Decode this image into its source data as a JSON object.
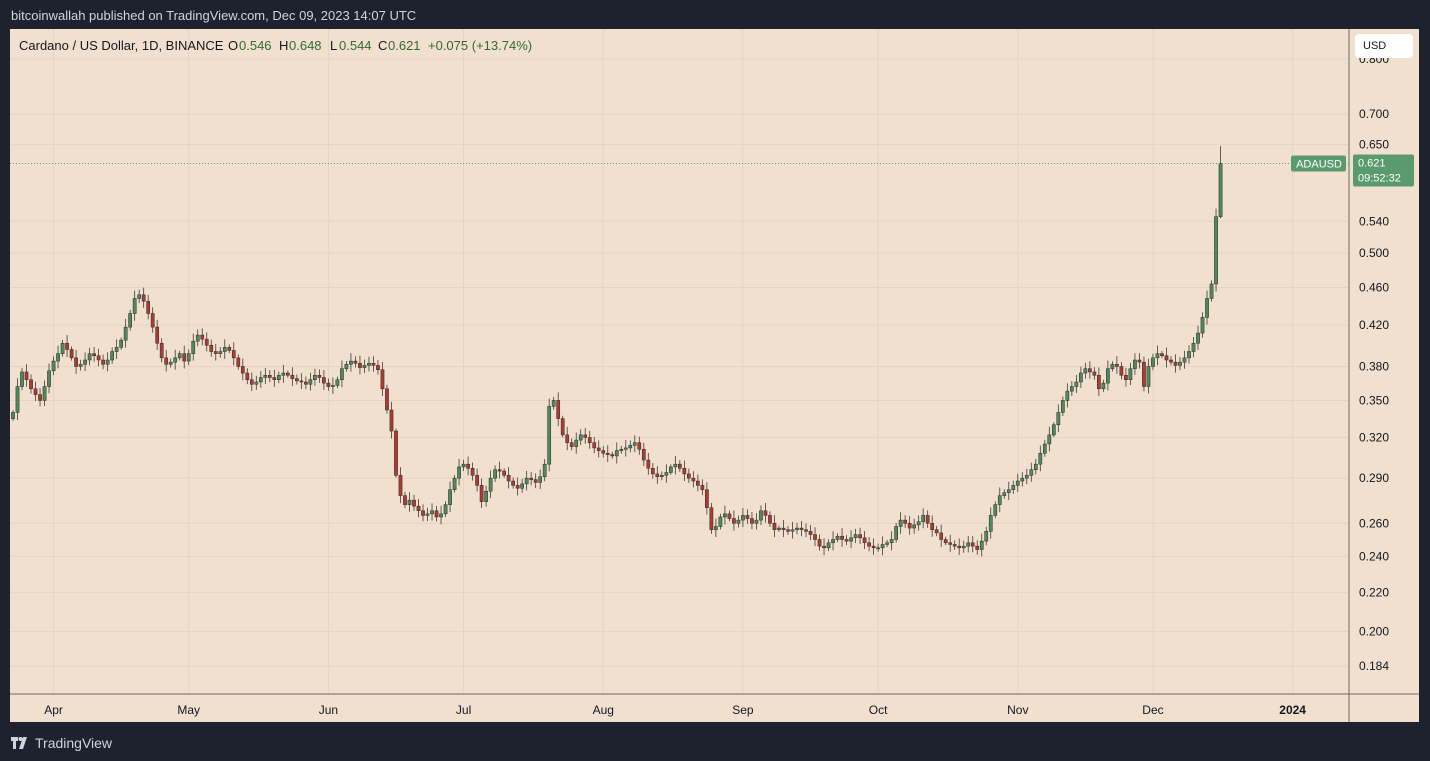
{
  "header": {
    "published": "bitcoinwallah published on TradingView.com, Dec 09, 2023 14:07 UTC"
  },
  "footer": {
    "brand": "TradingView"
  },
  "legend": {
    "symbol": "Cardano / US Dollar, 1D, BINANCE",
    "open_label": "O",
    "open": "0.546",
    "high_label": "H",
    "high": "0.648",
    "low_label": "L",
    "low": "0.544",
    "close_label": "C",
    "close": "0.621",
    "change": "+0.075 (+13.74%)"
  },
  "currency_button": "USD",
  "price_tag": {
    "symbol": "ADAUSD",
    "price": "0.621",
    "countdown": "09:52:32"
  },
  "colors": {
    "background": "#f2e0cf",
    "up": "#4f8b5a",
    "down": "#b03a2e",
    "tag": "#5a9b6e",
    "frame": "#1e222d"
  },
  "chart_data": {
    "type": "candlestick",
    "title": "Cardano / US Dollar, 1D, BINANCE",
    "y_scale": "log",
    "ylim": [
      0.172,
      0.86
    ],
    "x_ticks": [
      "Apr",
      "May",
      "Jun",
      "Jul",
      "Aug",
      "Sep",
      "Oct",
      "Nov",
      "Dec",
      "2024"
    ],
    "y_ticks": [
      "0.800",
      "0.700",
      "0.650",
      "0.540",
      "0.500",
      "0.460",
      "0.420",
      "0.380",
      "0.350",
      "0.320",
      "0.290",
      "0.260",
      "0.240",
      "0.220",
      "0.200",
      "0.184"
    ],
    "first_date": "2023-03-23",
    "last_date": "2023-12-09",
    "closes": [
      0.34,
      0.362,
      0.375,
      0.368,
      0.36,
      0.355,
      0.35,
      0.362,
      0.376,
      0.385,
      0.392,
      0.402,
      0.396,
      0.388,
      0.38,
      0.382,
      0.386,
      0.392,
      0.39,
      0.386,
      0.382,
      0.386,
      0.394,
      0.398,
      0.405,
      0.418,
      0.432,
      0.448,
      0.452,
      0.445,
      0.432,
      0.418,
      0.402,
      0.388,
      0.382,
      0.384,
      0.388,
      0.392,
      0.385,
      0.392,
      0.404,
      0.41,
      0.406,
      0.4,
      0.394,
      0.392,
      0.394,
      0.398,
      0.395,
      0.388,
      0.38,
      0.374,
      0.368,
      0.364,
      0.366,
      0.37,
      0.372,
      0.37,
      0.368,
      0.372,
      0.374,
      0.372,
      0.369,
      0.367,
      0.366,
      0.364,
      0.368,
      0.372,
      0.37,
      0.365,
      0.362,
      0.363,
      0.368,
      0.378,
      0.382,
      0.385,
      0.383,
      0.379,
      0.381,
      0.383,
      0.381,
      0.377,
      0.36,
      0.342,
      0.325,
      0.292,
      0.278,
      0.272,
      0.275,
      0.271,
      0.268,
      0.265,
      0.266,
      0.268,
      0.264,
      0.266,
      0.272,
      0.282,
      0.29,
      0.298,
      0.3,
      0.297,
      0.292,
      0.285,
      0.274,
      0.281,
      0.29,
      0.296,
      0.295,
      0.292,
      0.288,
      0.285,
      0.283,
      0.286,
      0.29,
      0.289,
      0.287,
      0.291,
      0.3,
      0.345,
      0.35,
      0.335,
      0.322,
      0.316,
      0.313,
      0.318,
      0.322,
      0.32,
      0.316,
      0.312,
      0.31,
      0.308,
      0.307,
      0.306,
      0.31,
      0.311,
      0.312,
      0.314,
      0.316,
      0.311,
      0.303,
      0.297,
      0.293,
      0.291,
      0.292,
      0.294,
      0.298,
      0.3,
      0.297,
      0.293,
      0.29,
      0.288,
      0.285,
      0.282,
      0.27,
      0.256,
      0.258,
      0.264,
      0.266,
      0.263,
      0.26,
      0.262,
      0.265,
      0.263,
      0.26,
      0.262,
      0.268,
      0.265,
      0.26,
      0.256,
      0.257,
      0.256,
      0.255,
      0.256,
      0.257,
      0.256,
      0.255,
      0.253,
      0.25,
      0.246,
      0.245,
      0.248,
      0.25,
      0.252,
      0.25,
      0.249,
      0.251,
      0.253,
      0.251,
      0.248,
      0.246,
      0.245,
      0.245,
      0.247,
      0.248,
      0.25,
      0.258,
      0.262,
      0.26,
      0.257,
      0.259,
      0.261,
      0.265,
      0.26,
      0.256,
      0.254,
      0.25,
      0.248,
      0.247,
      0.246,
      0.245,
      0.246,
      0.248,
      0.246,
      0.244,
      0.249,
      0.255,
      0.265,
      0.272,
      0.278,
      0.28,
      0.282,
      0.285,
      0.288,
      0.29,
      0.292,
      0.296,
      0.3,
      0.308,
      0.315,
      0.322,
      0.33,
      0.34,
      0.35,
      0.358,
      0.362,
      0.366,
      0.374,
      0.378,
      0.375,
      0.372,
      0.36,
      0.365,
      0.378,
      0.382,
      0.38,
      0.372,
      0.368,
      0.378,
      0.386,
      0.384,
      0.362,
      0.38,
      0.388,
      0.392,
      0.39,
      0.386,
      0.384,
      0.381,
      0.384,
      0.388,
      0.394,
      0.402,
      0.412,
      0.428,
      0.448,
      0.464,
      0.546,
      0.621
    ],
    "last_candle": {
      "open": 0.546,
      "high": 0.648,
      "low": 0.544,
      "close": 0.621
    }
  }
}
